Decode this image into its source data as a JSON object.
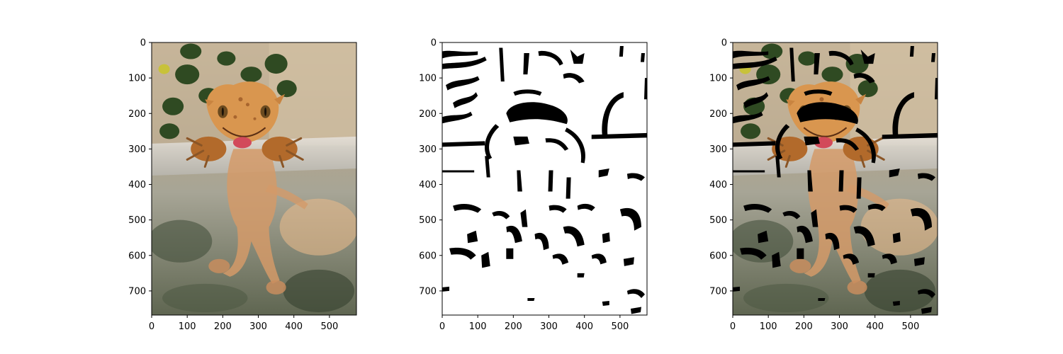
{
  "figure": {
    "background": "#ffffff",
    "panels": [
      {
        "id": "original",
        "content": "photo of a crested gecko climbing out of a plastic tank with ivy leaves behind",
        "x_ticks": [
          "0",
          "100",
          "200",
          "300",
          "400",
          "500"
        ],
        "y_ticks": [
          "0",
          "100",
          "200",
          "300",
          "400",
          "500",
          "600",
          "700"
        ],
        "x_max": 576,
        "y_max": 768
      },
      {
        "id": "binary-mask",
        "content": "black and white thresholded mask of the gecko photo",
        "x_ticks": [
          "0",
          "100",
          "200",
          "300",
          "400",
          "500"
        ],
        "y_ticks": [
          "0",
          "100",
          "200",
          "300",
          "400",
          "500",
          "600",
          "700"
        ],
        "x_max": 576,
        "y_max": 768
      },
      {
        "id": "masked-photo",
        "content": "gecko photo with the black mask regions overlaid",
        "x_ticks": [
          "0",
          "100",
          "200",
          "300",
          "400",
          "500"
        ],
        "y_ticks": [
          "0",
          "100",
          "200",
          "300",
          "400",
          "500",
          "600",
          "700"
        ],
        "x_max": 576,
        "y_max": 768
      }
    ],
    "colors": {
      "gecko": "#d9964f",
      "gecko_dark": "#8a5526",
      "tank_bg": "#b9a889",
      "leaf": "#2f4a22",
      "mask_black": "#000000",
      "mask_white": "#ffffff"
    }
  }
}
